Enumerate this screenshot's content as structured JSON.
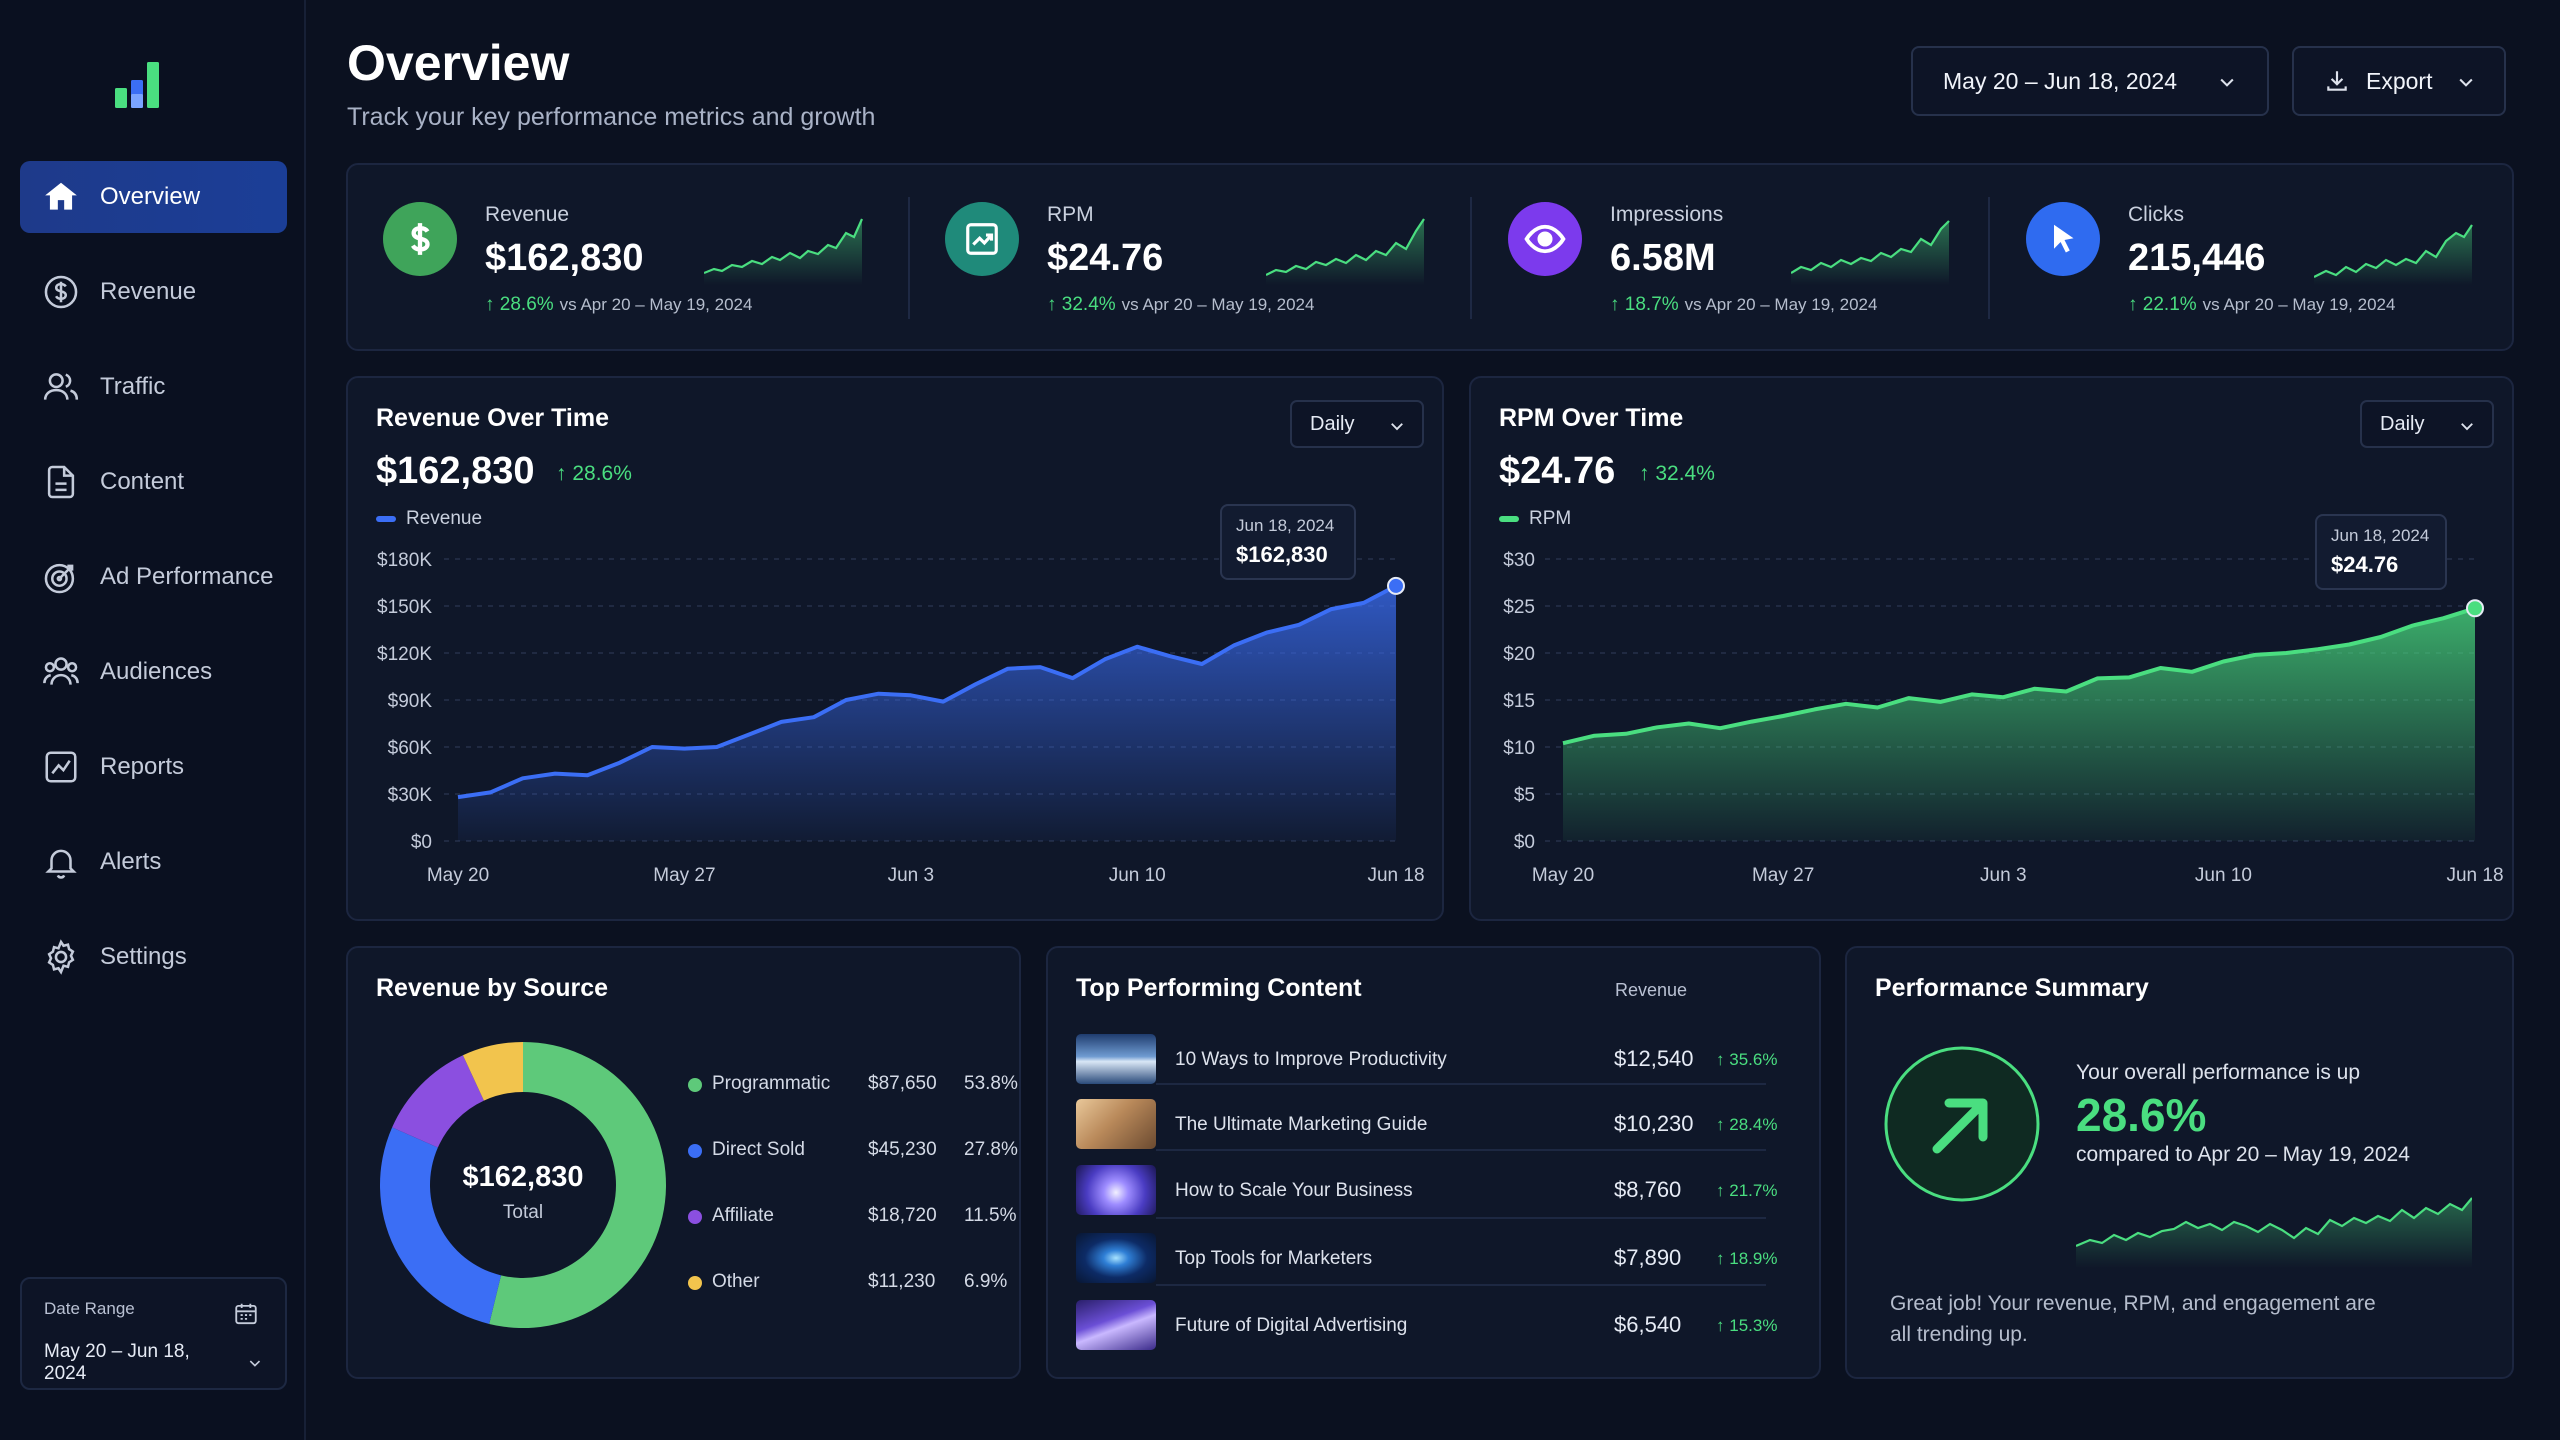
{
  "sidebar": {
    "items": [
      {
        "label": "Overview",
        "icon": "home-icon",
        "active": true
      },
      {
        "label": "Revenue",
        "icon": "dollar-circle-icon"
      },
      {
        "label": "Traffic",
        "icon": "users-icon"
      },
      {
        "label": "Content",
        "icon": "document-icon"
      },
      {
        "label": "Ad Performance",
        "icon": "target-icon"
      },
      {
        "label": "Audiences",
        "icon": "audience-icon"
      },
      {
        "label": "Reports",
        "icon": "chart-icon"
      },
      {
        "label": "Alerts",
        "icon": "bell-icon"
      },
      {
        "label": "Settings",
        "icon": "gear-icon"
      }
    ],
    "date_range": {
      "label": "Date Range",
      "value": "May 20 – Jun 18, 2024"
    }
  },
  "header": {
    "title": "Overview",
    "subtitle": "Track your key performance metrics and growth",
    "date_button": "May 20 – Jun 18, 2024",
    "export_button": "Export"
  },
  "kpis": [
    {
      "label": "Revenue",
      "value": "$162,830",
      "delta": "28.6%",
      "compare": "vs Apr 20 – May 19, 2024",
      "icon": "dollar-icon",
      "color": "#3fa45a"
    },
    {
      "label": "RPM",
      "value": "$24.76",
      "delta": "32.4%",
      "compare": "vs Apr 20 – May 19, 2024",
      "icon": "trend-up-icon",
      "color": "#1f8a7a"
    },
    {
      "label": "Impressions",
      "value": "6.58M",
      "delta": "18.7%",
      "compare": "vs Apr 20 – May 19, 2024",
      "icon": "eye-icon",
      "color": "#7c3aed"
    },
    {
      "label": "Clicks",
      "value": "215,446",
      "delta": "22.1%",
      "compare": "vs Apr 20 – May 19, 2024",
      "icon": "cursor-icon",
      "color": "#2f6bf0"
    }
  ],
  "revenue_chart": {
    "title": "Revenue Over Time",
    "value": "$162,830",
    "delta": "28.6%",
    "legend": "Revenue",
    "select": "Daily",
    "tooltip_date": "Jun 18, 2024",
    "tooltip_value": "$162,830",
    "color": "#3b6ef5"
  },
  "rpm_chart": {
    "title": "RPM Over Time",
    "value": "$24.76",
    "delta": "32.4%",
    "legend": "RPM",
    "select": "Daily",
    "tooltip_date": "Jun 18, 2024",
    "tooltip_value": "$24.76",
    "color": "#4ade80"
  },
  "chart_data": [
    {
      "type": "area",
      "legend": "Revenue",
      "xtick_labels": [
        "May 20",
        "May 27",
        "Jun 3",
        "Jun 10",
        "Jun 18"
      ],
      "ytick_labels": [
        "$0",
        "$30K",
        "$60K",
        "$90K",
        "$120K",
        "$150K",
        "$180K"
      ],
      "ylim": [
        0,
        180000
      ],
      "grid": true,
      "x": [
        "May 20",
        "May 21",
        "May 22",
        "May 23",
        "May 24",
        "May 25",
        "May 26",
        "May 27",
        "May 28",
        "May 29",
        "May 30",
        "May 31",
        "Jun 1",
        "Jun 2",
        "Jun 3",
        "Jun 4",
        "Jun 5",
        "Jun 6",
        "Jun 7",
        "Jun 8",
        "Jun 9",
        "Jun 10",
        "Jun 11",
        "Jun 12",
        "Jun 13",
        "Jun 14",
        "Jun 15",
        "Jun 16",
        "Jun 17",
        "Jun 18"
      ],
      "values": [
        28000,
        31000,
        40000,
        43000,
        42000,
        50000,
        60000,
        59000,
        60000,
        68000,
        76000,
        79000,
        90000,
        94000,
        93000,
        89000,
        100000,
        110000,
        111000,
        104000,
        116000,
        124000,
        118000,
        113000,
        125000,
        133000,
        138000,
        148000,
        152000,
        162830
      ]
    },
    {
      "type": "area",
      "legend": "RPM",
      "xtick_labels": [
        "May 20",
        "May 27",
        "Jun 3",
        "Jun 10",
        "Jun 18"
      ],
      "ytick_labels": [
        "$0",
        "$5",
        "$10",
        "$15",
        "$20",
        "$25",
        "$30"
      ],
      "ylim": [
        0,
        30
      ],
      "grid": true,
      "x": [
        "May 20",
        "May 21",
        "May 22",
        "May 23",
        "May 24",
        "May 25",
        "May 26",
        "May 27",
        "May 28",
        "May 29",
        "May 30",
        "May 31",
        "Jun 1",
        "Jun 2",
        "Jun 3",
        "Jun 4",
        "Jun 5",
        "Jun 6",
        "Jun 7",
        "Jun 8",
        "Jun 9",
        "Jun 10",
        "Jun 11",
        "Jun 12",
        "Jun 13",
        "Jun 14",
        "Jun 15",
        "Jun 16",
        "Jun 17",
        "Jun 18"
      ],
      "values": [
        10.4,
        11.2,
        11.4,
        12.1,
        12.5,
        12.0,
        12.7,
        13.3,
        14.0,
        14.6,
        14.2,
        15.2,
        14.8,
        15.6,
        15.3,
        16.2,
        15.9,
        17.3,
        17.4,
        18.4,
        18.0,
        19.1,
        19.8,
        20.0,
        20.4,
        20.9,
        21.7,
        22.9,
        23.7,
        24.76
      ]
    },
    {
      "type": "pie",
      "title": "Revenue by Source",
      "center_value": "$162,830",
      "center_label": "Total",
      "categories": [
        "Programmatic",
        "Direct Sold",
        "Affiliate",
        "Other"
      ],
      "amounts": [
        "$87,650",
        "$45,230",
        "$18,720",
        "$11,230"
      ],
      "percents": [
        "53.8%",
        "27.8%",
        "11.5%",
        "6.9%"
      ],
      "values": [
        53.8,
        27.8,
        11.5,
        6.9
      ],
      "colors": [
        "#5ec97a",
        "#3b6ef5",
        "#8b4fe0",
        "#f2c44d"
      ]
    }
  ],
  "top_content": {
    "title": "Top Performing Content",
    "revenue_header": "Revenue",
    "rows": [
      {
        "title": "10 Ways to Improve Productivity",
        "revenue": "$12,540",
        "change": "35.6%"
      },
      {
        "title": "The Ultimate Marketing Guide",
        "revenue": "$10,230",
        "change": "28.4%"
      },
      {
        "title": "How to Scale Your Business",
        "revenue": "$8,760",
        "change": "21.7%"
      },
      {
        "title": "Top Tools for Marketers",
        "revenue": "$7,890",
        "change": "18.9%"
      },
      {
        "title": "Future of Digital Advertising",
        "revenue": "$6,540",
        "change": "15.3%"
      }
    ]
  },
  "summary": {
    "title": "Performance Summary",
    "line1": "Your overall performance is up",
    "value": "28.6%",
    "line2": "compared to Apr 20 – May 19, 2024",
    "message": "Great job! Your revenue, RPM, and engagement are all trending up."
  }
}
